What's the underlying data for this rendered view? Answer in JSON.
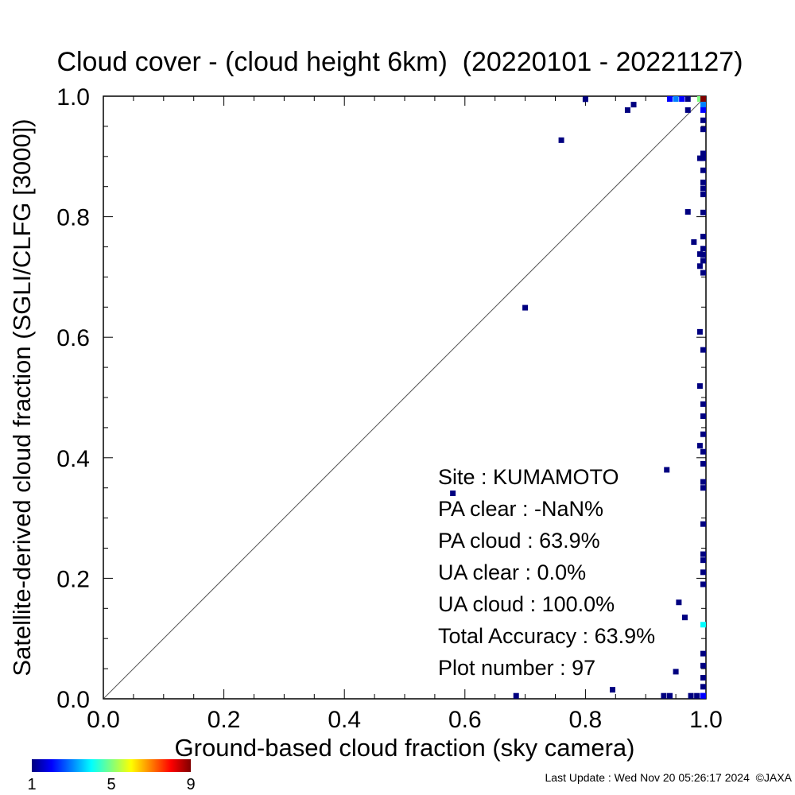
{
  "chart_data": {
    "type": "heatmap",
    "title": "Cloud cover - (cloud height 6km)  (20220101 - 20221127)",
    "xlabel": "Ground-based cloud fraction (sky camera)",
    "ylabel": "Satellite-derived cloud fraction (SGLI/CLFG [3000])",
    "xlim": [
      0,
      1
    ],
    "ylim": [
      0,
      1
    ],
    "x_ticks": [
      "0.0",
      "0.2",
      "0.4",
      "0.6",
      "0.8",
      "1.0"
    ],
    "y_ticks": [
      "0.0",
      "0.2",
      "0.4",
      "0.6",
      "0.8",
      "1.0"
    ],
    "diagonal_line": true,
    "grid": false,
    "colorbar": {
      "min": 1,
      "max": 9,
      "tick_labels": [
        "1",
        "5",
        "9"
      ],
      "position": "bottom-left"
    },
    "stats": [
      "Site : KUMAMOTO",
      "PA clear :  -NaN%",
      "PA cloud :  63.9%",
      "UA clear :   0.0%",
      "UA cloud : 100.0%",
      "Total Accuracy :  63.9%",
      "Plot number :        97"
    ],
    "points": [
      {
        "x": 0.8,
        "y": 0.995,
        "count": 1
      },
      {
        "x": 0.87,
        "y": 0.977,
        "count": 1
      },
      {
        "x": 0.88,
        "y": 0.986,
        "count": 1
      },
      {
        "x": 0.94,
        "y": 0.996,
        "count": 2
      },
      {
        "x": 0.95,
        "y": 0.996,
        "count": 3
      },
      {
        "x": 0.96,
        "y": 0.996,
        "count": 2
      },
      {
        "x": 0.97,
        "y": 0.996,
        "count": 1
      },
      {
        "x": 0.99,
        "y": 0.996,
        "count": 5
      },
      {
        "x": 1.0,
        "y": 0.996,
        "count": 9
      },
      {
        "x": 0.97,
        "y": 0.977,
        "count": 1
      },
      {
        "x": 1.0,
        "y": 0.986,
        "count": 3
      },
      {
        "x": 1.0,
        "y": 0.977,
        "count": 2
      },
      {
        "x": 0.76,
        "y": 0.927,
        "count": 1
      },
      {
        "x": 1.0,
        "y": 0.96,
        "count": 1
      },
      {
        "x": 1.0,
        "y": 0.945,
        "count": 1
      },
      {
        "x": 1.0,
        "y": 0.905,
        "count": 1
      },
      {
        "x": 0.99,
        "y": 0.897,
        "count": 1
      },
      {
        "x": 1.0,
        "y": 0.897,
        "count": 1
      },
      {
        "x": 1.0,
        "y": 0.877,
        "count": 1
      },
      {
        "x": 1.0,
        "y": 0.857,
        "count": 1
      },
      {
        "x": 1.0,
        "y": 0.847,
        "count": 1
      },
      {
        "x": 1.0,
        "y": 0.837,
        "count": 1
      },
      {
        "x": 0.97,
        "y": 0.808,
        "count": 1
      },
      {
        "x": 1.0,
        "y": 0.807,
        "count": 1
      },
      {
        "x": 1.0,
        "y": 0.767,
        "count": 1
      },
      {
        "x": 0.98,
        "y": 0.758,
        "count": 1
      },
      {
        "x": 1.0,
        "y": 0.747,
        "count": 1
      },
      {
        "x": 0.99,
        "y": 0.738,
        "count": 1
      },
      {
        "x": 1.0,
        "y": 0.737,
        "count": 1
      },
      {
        "x": 1.0,
        "y": 0.727,
        "count": 1
      },
      {
        "x": 0.99,
        "y": 0.718,
        "count": 1
      },
      {
        "x": 1.0,
        "y": 0.707,
        "count": 1
      },
      {
        "x": 0.7,
        "y": 0.649,
        "count": 1
      },
      {
        "x": 0.99,
        "y": 0.609,
        "count": 1
      },
      {
        "x": 1.0,
        "y": 0.579,
        "count": 1
      },
      {
        "x": 0.99,
        "y": 0.519,
        "count": 1
      },
      {
        "x": 1.0,
        "y": 0.489,
        "count": 1
      },
      {
        "x": 1.0,
        "y": 0.469,
        "count": 1
      },
      {
        "x": 1.0,
        "y": 0.439,
        "count": 1
      },
      {
        "x": 0.99,
        "y": 0.42,
        "count": 1
      },
      {
        "x": 1.0,
        "y": 0.41,
        "count": 1
      },
      {
        "x": 1.0,
        "y": 0.39,
        "count": 1
      },
      {
        "x": 0.935,
        "y": 0.38,
        "count": 1
      },
      {
        "x": 1.0,
        "y": 0.36,
        "count": 1
      },
      {
        "x": 1.0,
        "y": 0.35,
        "count": 1
      },
      {
        "x": 0.58,
        "y": 0.341,
        "count": 1
      },
      {
        "x": 1.0,
        "y": 0.29,
        "count": 1
      },
      {
        "x": 1.0,
        "y": 0.24,
        "count": 1
      },
      {
        "x": 1.0,
        "y": 0.23,
        "count": 1
      },
      {
        "x": 1.0,
        "y": 0.21,
        "count": 1
      },
      {
        "x": 1.0,
        "y": 0.19,
        "count": 1
      },
      {
        "x": 0.955,
        "y": 0.16,
        "count": 1
      },
      {
        "x": 0.965,
        "y": 0.135,
        "count": 1
      },
      {
        "x": 1.0,
        "y": 0.123,
        "count": 4
      },
      {
        "x": 1.0,
        "y": 0.075,
        "count": 1
      },
      {
        "x": 1.0,
        "y": 0.055,
        "count": 1
      },
      {
        "x": 1.0,
        "y": 0.035,
        "count": 1
      },
      {
        "x": 1.0,
        "y": 0.02,
        "count": 1
      },
      {
        "x": 0.95,
        "y": 0.045,
        "count": 1
      },
      {
        "x": 0.845,
        "y": 0.015,
        "count": 1
      },
      {
        "x": 0.685,
        "y": 0.005,
        "count": 1
      },
      {
        "x": 0.93,
        "y": 0.005,
        "count": 1
      },
      {
        "x": 0.94,
        "y": 0.005,
        "count": 1
      },
      {
        "x": 0.975,
        "y": 0.005,
        "count": 1
      },
      {
        "x": 0.985,
        "y": 0.005,
        "count": 1
      },
      {
        "x": 0.995,
        "y": 0.005,
        "count": 2
      },
      {
        "x": 1.0,
        "y": 0.005,
        "count": 2
      }
    ]
  },
  "footer": {
    "last_update": "Last Update : Wed Nov 20 05:26:17 2024  ©JAXA"
  }
}
